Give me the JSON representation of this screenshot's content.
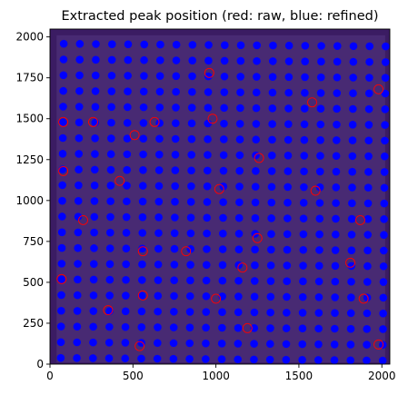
{
  "chart_data": {
    "type": "scatter",
    "title": "Extracted peak position (red: raw, blue: refined)",
    "xlabel": "",
    "ylabel": "",
    "xlim": [
      0,
      2048
    ],
    "ylim": [
      0,
      2048
    ],
    "x_ticks": [
      0,
      500,
      1000,
      1500,
      2000
    ],
    "y_ticks": [
      0,
      250,
      500,
      750,
      1000,
      1250,
      1500,
      1750,
      2000
    ],
    "grid": false,
    "background_image": {
      "description": "detector image",
      "colormap": "viridis-like dark purple",
      "color": "#482a73",
      "extent": [
        40,
        2020,
        10,
        2010
      ]
    },
    "grid_of_peaks": {
      "rows": 21,
      "cols": 21,
      "x_start": 65,
      "x_step": 97,
      "y_start": 38,
      "y_step": 96,
      "x_shift_per_row": 0.9,
      "y_shift_per_col": -0.8
    },
    "series": [
      {
        "name": "red: raw",
        "color": "#ff0000",
        "marker": "open circle",
        "highlighted_points": [
          [
            80,
            1480
          ],
          [
            260,
            1480
          ],
          [
            630,
            1480
          ],
          [
            980,
            1500
          ],
          [
            1580,
            1600
          ],
          [
            1980,
            1680
          ],
          [
            960,
            1780
          ],
          [
            510,
            1400
          ],
          [
            420,
            1120
          ],
          [
            80,
            1180
          ],
          [
            1020,
            1070
          ],
          [
            1870,
            880
          ],
          [
            200,
            880
          ],
          [
            560,
            690
          ],
          [
            820,
            690
          ],
          [
            1250,
            770
          ],
          [
            1160,
            590
          ],
          [
            1810,
            620
          ],
          [
            70,
            520
          ],
          [
            350,
            330
          ],
          [
            560,
            420
          ],
          [
            1000,
            400
          ],
          [
            1190,
            220
          ],
          [
            1890,
            400
          ],
          [
            1980,
            120
          ],
          [
            540,
            110
          ],
          [
            1260,
            1260
          ],
          [
            1600,
            1060
          ]
        ]
      },
      {
        "name": "blue: refined",
        "color": "#0000ff",
        "marker": "filled circle"
      }
    ]
  }
}
